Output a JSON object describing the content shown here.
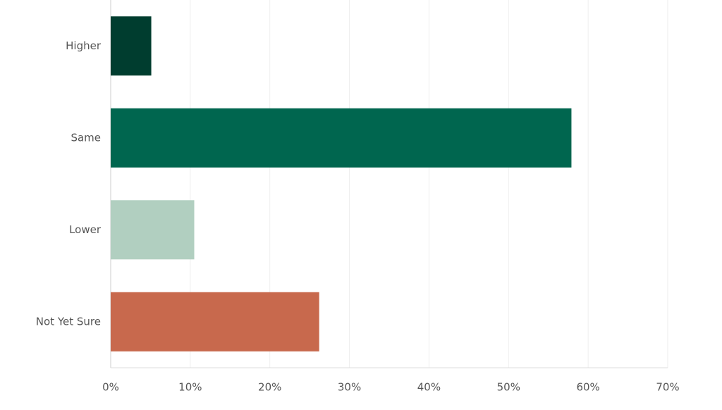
{
  "chart_data": {
    "type": "hbar",
    "categories": [
      "Higher",
      "Same",
      "Lower",
      "Not Yet Sure"
    ],
    "values": [
      5.1,
      57.9,
      10.5,
      26.2
    ],
    "colors": [
      "#003d2f",
      "#00664f",
      "#b1cfc0",
      "#c8694d"
    ],
    "xlim": [
      0,
      70
    ],
    "xticks": [
      {
        "value": 0,
        "label": "0%"
      },
      {
        "value": 10,
        "label": "10%"
      },
      {
        "value": 20,
        "label": "20%"
      },
      {
        "value": 30,
        "label": "30%"
      },
      {
        "value": 40,
        "label": "40%"
      },
      {
        "value": 50,
        "label": "50%"
      },
      {
        "value": 60,
        "label": "60%"
      },
      {
        "value": 70,
        "label": "70%"
      }
    ],
    "grid": true
  }
}
